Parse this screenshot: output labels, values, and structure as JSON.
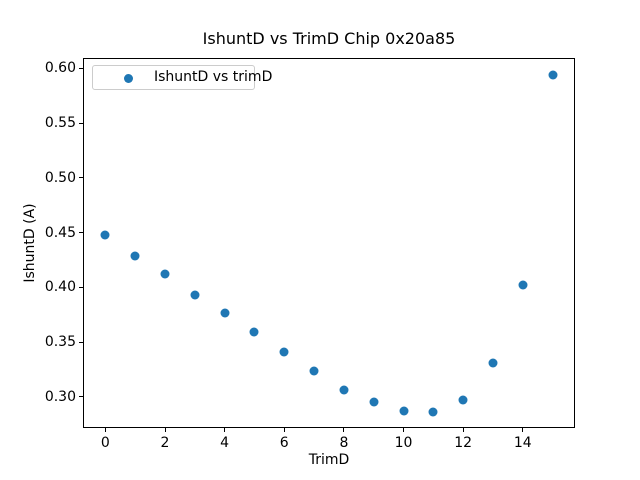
{
  "chart_data": {
    "type": "scatter",
    "title": "IshuntD vs TrimD Chip 0x20a85",
    "xlabel": "TrimD",
    "ylabel": "IshuntD (A)",
    "legend": {
      "label": "IshuntD vs trimD",
      "position": "upper left"
    },
    "marker_color": "#1f77b4",
    "x": [
      0,
      1,
      2,
      3,
      4,
      5,
      6,
      7,
      8,
      9,
      10,
      11,
      12,
      13,
      14,
      15
    ],
    "y": [
      0.448,
      0.429,
      0.412,
      0.393,
      0.377,
      0.359,
      0.341,
      0.324,
      0.306,
      0.295,
      0.287,
      0.286,
      0.297,
      0.331,
      0.402,
      0.594
    ],
    "xticks": [
      0,
      2,
      4,
      6,
      8,
      10,
      12,
      14
    ],
    "yticks": [
      0.3,
      0.35,
      0.4,
      0.45,
      0.5,
      0.55,
      0.6
    ],
    "xlim": [
      -0.75,
      15.75
    ],
    "ylim": [
      0.2717,
      0.6094
    ],
    "grid": false,
    "colors": {
      "spine": "#000000",
      "text": "#000000",
      "legend_border": "#cccccc",
      "background": "#ffffff"
    }
  }
}
